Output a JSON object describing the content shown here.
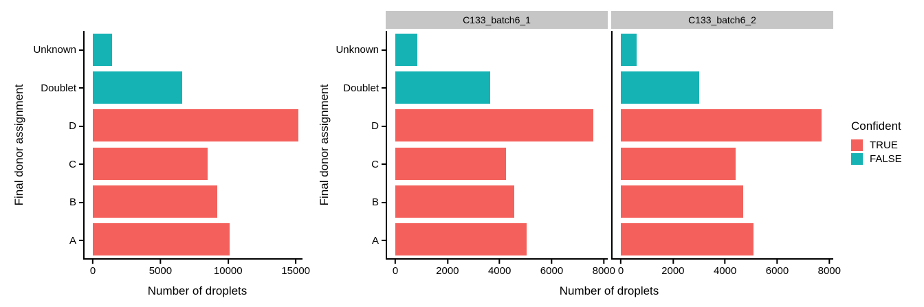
{
  "colors": {
    "confident_true": "#F4615C",
    "confident_false": "#16B3B5",
    "strip_bg": "#C6C6C6",
    "axis": "#000000",
    "background": "#FFFFFF"
  },
  "legend": {
    "title": "Confident",
    "position": "right",
    "items": [
      {
        "label": "TRUE",
        "color": "#F4615C"
      },
      {
        "label": "FALSE",
        "color": "#16B3B5"
      }
    ]
  },
  "chart_data": [
    {
      "type": "bar",
      "orientation": "horizontal",
      "title": "",
      "xlabel": "Number of droplets",
      "ylabel": "Final donor assignment",
      "grid": false,
      "categories": [
        "Unknown",
        "Doublet",
        "D",
        "C",
        "B",
        "A"
      ],
      "confident_by_category": [
        "FALSE",
        "FALSE",
        "TRUE",
        "TRUE",
        "TRUE",
        "TRUE"
      ],
      "xticks": [
        0,
        5000,
        10000,
        15000
      ],
      "xlim": [
        0,
        15500
      ],
      "panels": [
        {
          "facet_label": null,
          "values": [
            1400,
            6600,
            15200,
            8500,
            9200,
            10100
          ]
        }
      ]
    },
    {
      "type": "bar",
      "orientation": "horizontal",
      "title": "",
      "xlabel": "Number of droplets",
      "ylabel": "Final donor assignment",
      "grid": false,
      "categories": [
        "Unknown",
        "Doublet",
        "D",
        "C",
        "B",
        "A"
      ],
      "confident_by_category": [
        "FALSE",
        "FALSE",
        "TRUE",
        "TRUE",
        "TRUE",
        "TRUE"
      ],
      "xticks": [
        0,
        2000,
        4000,
        6000,
        8000
      ],
      "xlim": [
        0,
        8150
      ],
      "panels": [
        {
          "facet_label": "C133_batch6_1",
          "values": [
            850,
            3650,
            7600,
            4250,
            4550,
            5050
          ]
        },
        {
          "facet_label": "C133_batch6_2",
          "values": [
            600,
            3000,
            7700,
            4400,
            4700,
            5100
          ]
        }
      ]
    }
  ]
}
